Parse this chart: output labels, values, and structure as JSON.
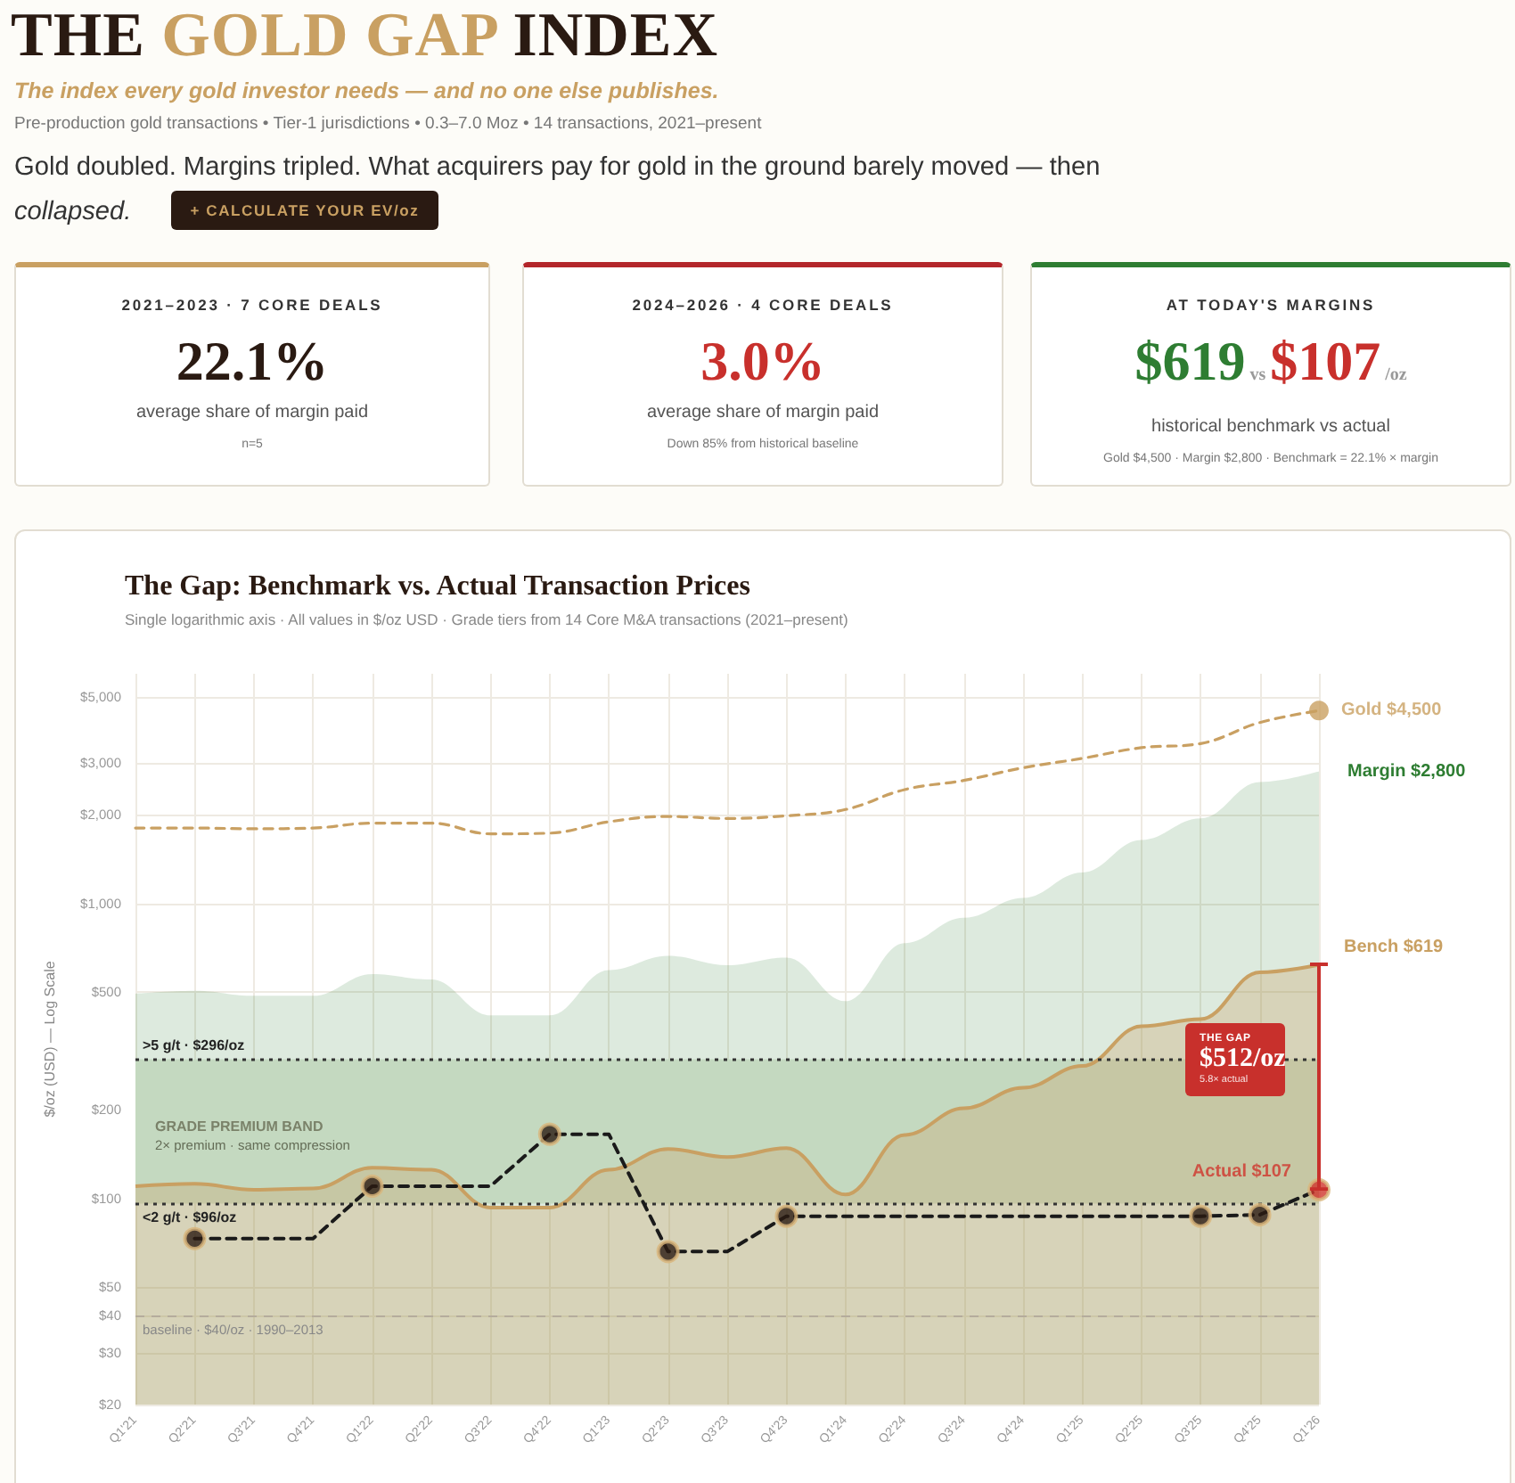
{
  "chart_data": [
    {
      "type": "other",
      "title": "THE GOLD GAP INDEX",
      "subtitle": "The index every gold investor needs — and no one else publishes.",
      "annotations": [
        "Pre-production gold transactions • Tier-1 jurisdictions • 0.3–7.0 Moz • 14 transactions, 2021–present",
        "Gold doubled. Margins tripled. What acquirers pay for gold in the ground barely moved — then collapsed.",
        "+ CALCULATE YOUR EV/oz"
      ]
    },
    {
      "type": "other",
      "title": "2021–2023 · 7 CORE DEALS",
      "color": "#c9a062",
      "annotations": [
        "22.1%",
        "average share of margin paid",
        "n=5"
      ]
    },
    {
      "type": "other",
      "title": "2024–2026 · 4 CORE DEALS",
      "color": "#b3262b",
      "annotations": [
        "3.0%",
        "average share of margin paid",
        "Down 85% from historical baseline"
      ]
    },
    {
      "type": "other",
      "title": "AT TODAY'S MARGINS",
      "color": "#2e7d32",
      "annotations": [
        "$619",
        "vs",
        "$107",
        "/oz",
        "historical benchmark vs actual",
        "Gold $4,500 · Margin $2,800 · Benchmark = 22.1% × margin"
      ]
    },
    {
      "type": "line",
      "title": "The Gap: Benchmark vs. Actual Transaction Prices",
      "subtitle": "Single logarithmic axis · All values in $/oz USD · Grade tiers from 14 Core M&A transactions (2021–present)",
      "ylabel": "$/oz (USD) — Log Scale",
      "log": true,
      "grid": true,
      "legend": false,
      "categories": [
        "Q1'21",
        "Q2'21",
        "Q3'21",
        "Q4'21",
        "Q1'22",
        "Q2'22",
        "Q3'22",
        "Q4'22",
        "Q1'23",
        "Q2'23",
        "Q3'23",
        "Q4'23",
        "Q1'24",
        "Q2'24",
        "Q3'24",
        "Q4'24",
        "Q1'25",
        "Q2'25",
        "Q3'25",
        "Q4'25",
        "Q1'26"
      ],
      "ylim": [
        20,
        6000
      ],
      "yticks": [
        {
          "value": 20,
          "label": "$20"
        },
        {
          "value": 30,
          "label": "$30"
        },
        {
          "value": 40,
          "label": "$40"
        },
        {
          "value": 50,
          "label": "$50"
        },
        {
          "value": 100,
          "label": "$100"
        },
        {
          "value": 200,
          "label": "$200"
        },
        {
          "value": 500,
          "label": "$500"
        },
        {
          "value": 1000,
          "label": "$1,000"
        },
        {
          "value": 2000,
          "label": "$2,000"
        },
        {
          "value": 3000,
          "label": "$3,000"
        },
        {
          "value": 5000,
          "label": "$5,000"
        }
      ],
      "series": [
        {
          "name": "Margin $2,800",
          "type": "area",
          "color": "#2e7d32",
          "values": [
            494,
            505,
            486,
            486,
            576,
            552,
            417,
            417,
            594,
            664,
            617,
            655,
            466,
            733,
            893,
            1043,
            1272,
            1640,
            1940,
            2577,
            2800
          ]
        },
        {
          "name": "Bench $619",
          "type": "area",
          "color": "#c9a062",
          "values": [
            110,
            112,
            107,
            108,
            127,
            125,
            93,
            93,
            125,
            147,
            138,
            148,
            103,
            164,
            202,
            237,
            281,
            383,
            405,
            584,
            619
          ]
        },
        {
          "type": "line",
          "color": "#c9a062",
          "line_style": "dashed",
          "marker": "none",
          "values": [
            1800,
            1800,
            1790,
            1800,
            1870,
            1870,
            1720,
            1730,
            1890,
            1970,
            1940,
            1980,
            2080,
            2430,
            2610,
            2880,
            3100,
            3370,
            3480,
            4100,
            4500
          ]
        },
        {
          "name": "Gold $4,500",
          "type": "scatter",
          "color": "#c9a062",
          "marker": "circle",
          "x": [
            "Q1'26"
          ],
          "values": [
            4500
          ]
        },
        {
          "type": "line",
          "color": "#1a1a1a",
          "line_style": "dashed",
          "marker": "none",
          "values": [
            null,
            73,
            73,
            73,
            110,
            110,
            110,
            165,
            165,
            66,
            66,
            87,
            87,
            87,
            87,
            87,
            87,
            87,
            87,
            88,
            107
          ]
        },
        {
          "type": "scatter",
          "color": "#2a1a12",
          "marker": "circle",
          "x": [
            "Q2'21",
            "Q1'22",
            "Q4'22",
            "Q2'23",
            "Q4'23",
            "Q3'25",
            "Q4'25"
          ],
          "values": [
            73,
            110,
            165,
            66,
            87,
            87,
            88
          ]
        },
        {
          "name": "Actual $107",
          "type": "scatter",
          "color": "#d0342c",
          "marker": "circle",
          "x": [
            "Q1'26"
          ],
          "values": [
            107
          ]
        }
      ],
      "ref_lines": [
        {
          "axis": "y",
          "value": 296,
          "label": ">5 g/t · $296/oz",
          "color": "#333333",
          "line_style": "dotted"
        },
        {
          "axis": "y",
          "value": 96,
          "label": "<2 g/t · $96/oz",
          "color": "#333333",
          "line_style": "dotted"
        },
        {
          "axis": "y",
          "value": 40,
          "label": "baseline · $40/oz · 1990–2013",
          "color": "#b5ac9c",
          "line_style": "dashed"
        }
      ],
      "bands": [
        {
          "axis": "y",
          "from": 96,
          "to": 296,
          "label": "GRADE PREMIUM BAND",
          "color": "#e2ebdc"
        }
      ],
      "annotations": [
        "2× premium · same compression",
        "THE GAP",
        "$512/oz",
        "5.8× actual"
      ]
    }
  ]
}
